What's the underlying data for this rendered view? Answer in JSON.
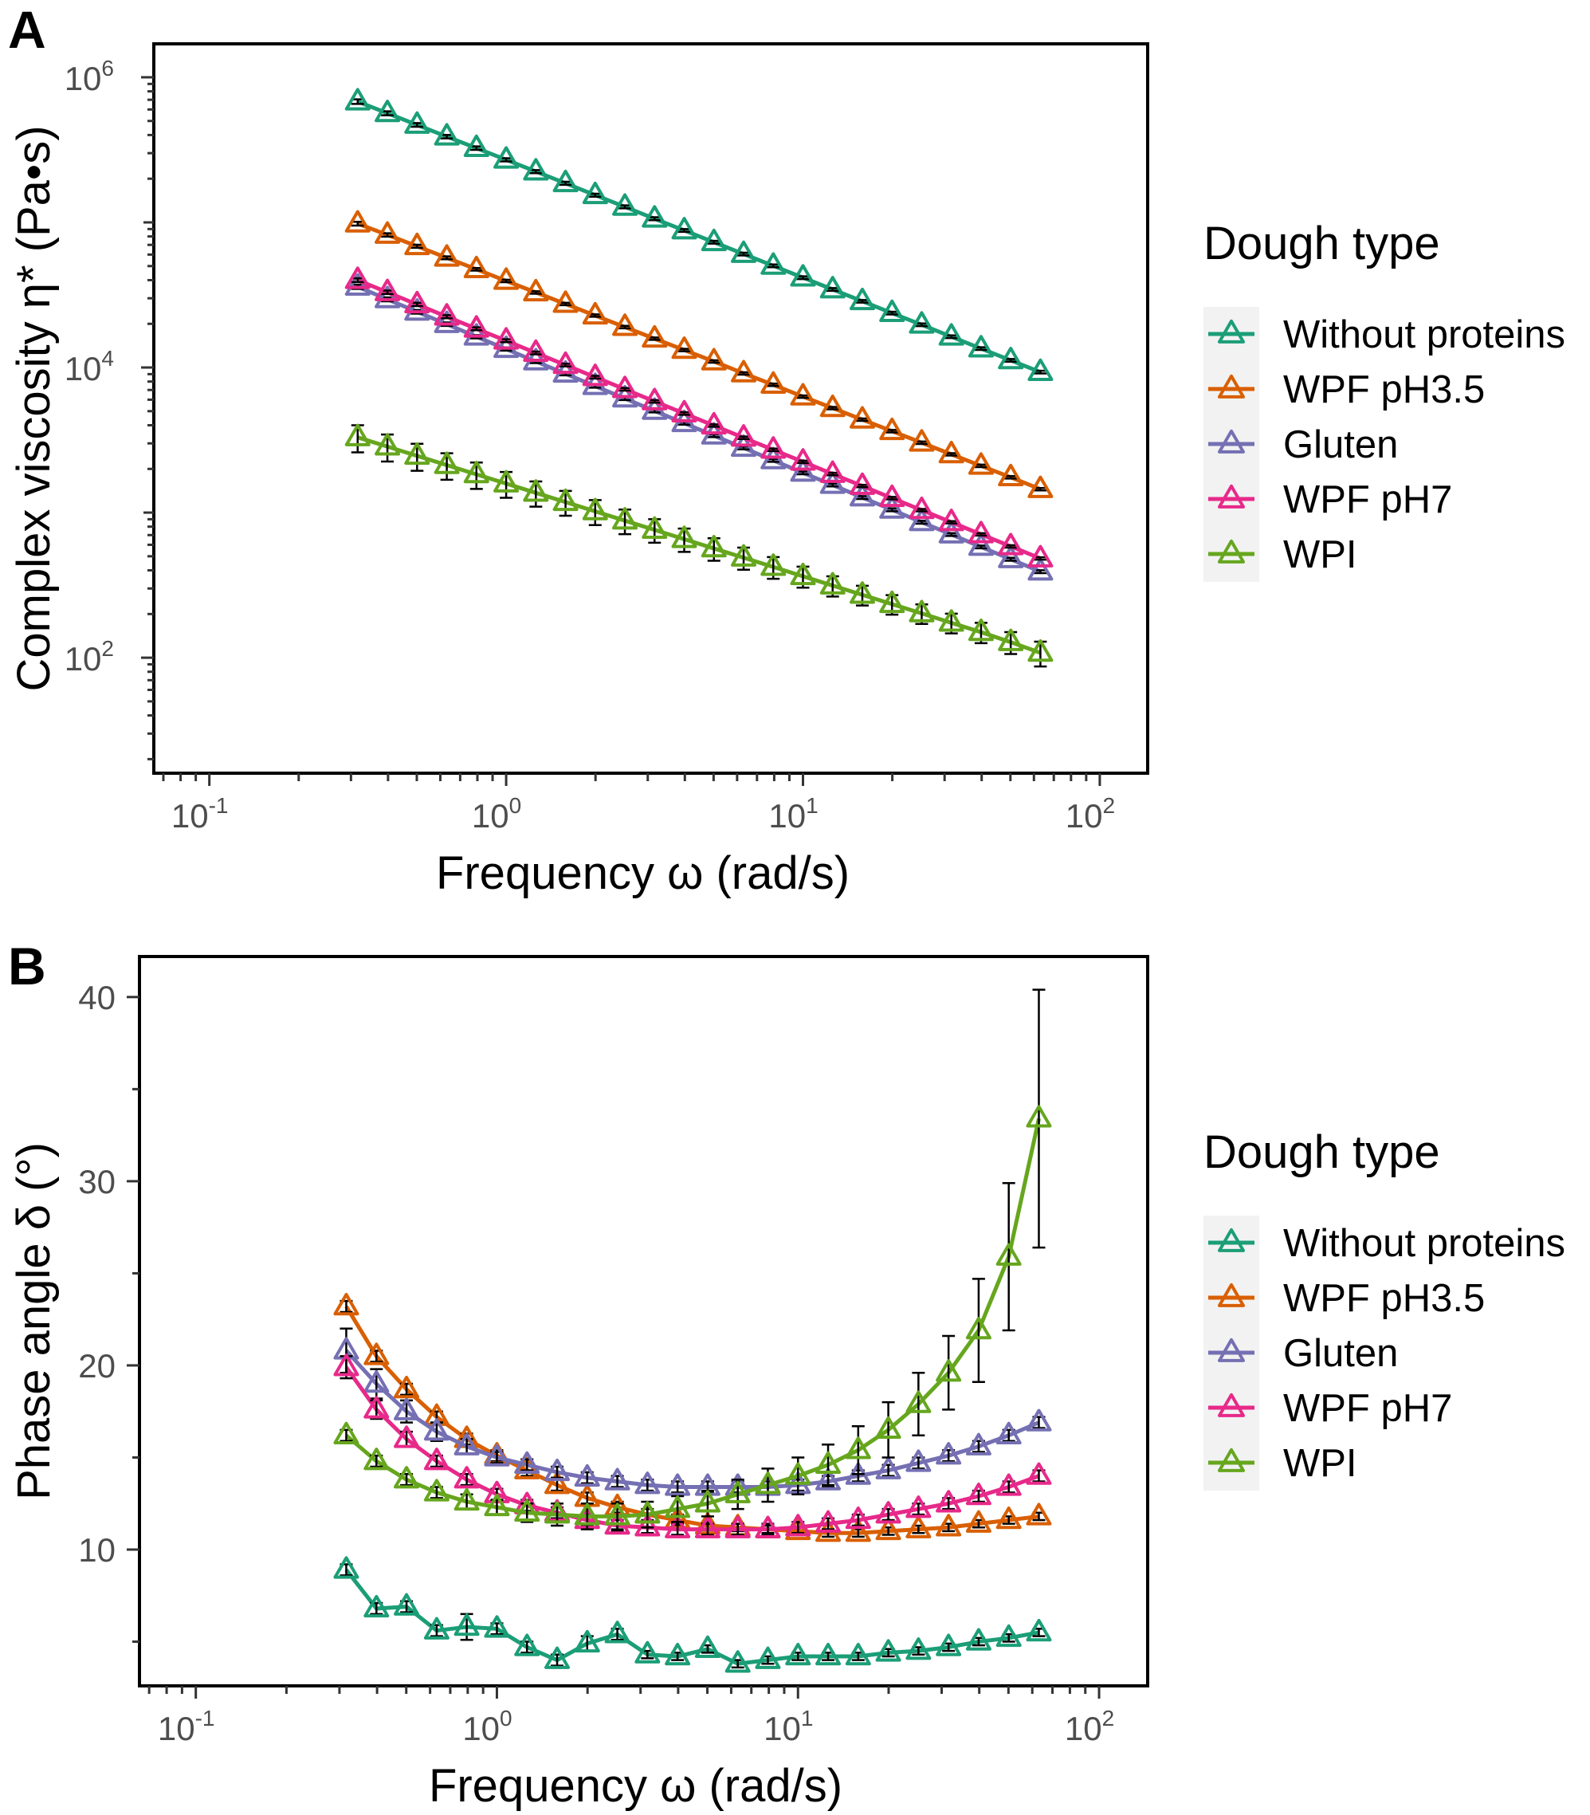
{
  "colors": {
    "without_proteins": "#1b9e77",
    "wpf_ph35": "#d95f02",
    "gluten": "#7570b3",
    "wpf_ph7": "#e7298a",
    "wpi": "#66a61e",
    "legend_background": "#f2f2f2",
    "error_bar": "#000000"
  },
  "chart_data": [
    {
      "panel": "A",
      "type": "line",
      "title": "",
      "xlabel": "Frequency ω (rad/s)",
      "ylabel": "Complex viscosity  η* (Pa•s)",
      "xscale": "log",
      "yscale": "log",
      "xlim": [
        0.065,
        145
      ],
      "ylim": [
        16,
        1700000
      ],
      "x_ticks": [
        {
          "base": "10",
          "exp": "-1",
          "value": 0.1
        },
        {
          "base": "10",
          "exp": "0",
          "value": 1
        },
        {
          "base": "10",
          "exp": "1",
          "value": 10
        },
        {
          "base": "10",
          "exp": "2",
          "value": 100
        }
      ],
      "y_ticks": [
        {
          "base": "10",
          "exp": "2",
          "value": 100
        },
        {
          "base": "10",
          "exp": "4",
          "value": 10000
        },
        {
          "base": "10",
          "exp": "6",
          "value": 1000000
        }
      ],
      "grid": false,
      "legend_title": "Dough type",
      "marker": "triangle-open",
      "x": [
        0.316,
        0.398,
        0.501,
        0.631,
        0.794,
        1.0,
        1.259,
        1.585,
        1.995,
        2.512,
        3.162,
        3.981,
        5.012,
        6.31,
        7.943,
        10.0,
        12.589,
        15.849,
        19.953,
        25.119,
        31.623,
        39.811,
        50.119,
        63.096
      ],
      "series": [
        {
          "name": "Without proteins",
          "color_key": "without_proteins",
          "values": [
            680000,
            565000,
            470000,
            390000,
            325000,
            270000,
            224000,
            186000,
            154000,
            128000,
            106000,
            88000,
            73000,
            60500,
            50200,
            41600,
            34500,
            28600,
            23700,
            19700,
            16300,
            13500,
            11200,
            9300
          ],
          "errors": [
            25000,
            18000,
            14000,
            11000,
            9000,
            7000,
            5500,
            4500,
            3700,
            3000,
            2500,
            2000,
            1600,
            1300,
            1100,
            900,
            750,
            600,
            500,
            420,
            350,
            290,
            240,
            200
          ]
        },
        {
          "name": "WPF pH3.5",
          "color_key": "wpf_ph35",
          "values": [
            98000,
            82000,
            68500,
            57000,
            47500,
            39500,
            32900,
            27400,
            22800,
            19000,
            15800,
            13200,
            11000,
            9100,
            7600,
            6300,
            5250,
            4370,
            3640,
            3030,
            2520,
            2100,
            1750,
            1450
          ],
          "errors": [
            3000,
            2200,
            1700,
            1300,
            1000,
            800,
            650,
            530,
            440,
            370,
            300,
            250,
            210,
            175,
            145,
            120,
            100,
            85,
            70,
            58,
            48,
            40,
            34,
            28
          ]
        },
        {
          "name": "Gluten",
          "color_key": "gluten",
          "values": [
            36000,
            29500,
            24200,
            19900,
            16300,
            13400,
            11000,
            9050,
            7440,
            6110,
            5020,
            4130,
            3390,
            2790,
            2290,
            1880,
            1550,
            1270,
            1045,
            858,
            706,
            580,
            477,
            392
          ],
          "errors": [
            1200,
            900,
            700,
            550,
            430,
            340,
            270,
            220,
            180,
            145,
            118,
            96,
            78,
            64,
            53,
            43,
            36,
            29,
            24,
            20,
            16,
            13,
            11,
            9
          ]
        },
        {
          "name": "WPF pH7",
          "color_key": "wpf_ph7",
          "values": [
            40000,
            33000,
            27200,
            22400,
            18500,
            15300,
            12600,
            10400,
            8580,
            7080,
            5840,
            4820,
            3980,
            3280,
            2710,
            2240,
            1845,
            1525,
            1258,
            1040,
            858,
            708,
            585,
            483
          ],
          "errors": [
            1200,
            900,
            700,
            550,
            430,
            340,
            270,
            220,
            180,
            145,
            118,
            96,
            78,
            64,
            53,
            43,
            36,
            29,
            24,
            20,
            16,
            13,
            11,
            9
          ]
        },
        {
          "name": "WPI",
          "color_key": "wpi",
          "values": [
            3300,
            2850,
            2460,
            2125,
            1835,
            1585,
            1368,
            1181,
            1020,
            880,
            760,
            656,
            566,
            489,
            422,
            364,
            314,
            271,
            234,
            202,
            174,
            150,
            128,
            108
          ],
          "errors": [
            700,
            600,
            520,
            440,
            380,
            320,
            270,
            230,
            200,
            170,
            140,
            120,
            100,
            85,
            72,
            60,
            50,
            42,
            36,
            31,
            27,
            24,
            22,
            21
          ]
        }
      ]
    },
    {
      "panel": "B",
      "type": "line",
      "title": "",
      "xlabel": "Frequency ω (rad/s)",
      "ylabel": "Phase angle  δ (°)",
      "xscale": "log",
      "yscale": "linear",
      "xlim": [
        0.065,
        145
      ],
      "ylim": [
        2.6,
        42.2
      ],
      "x_ticks": [
        {
          "base": "10",
          "exp": "-1",
          "value": 0.1
        },
        {
          "base": "10",
          "exp": "0",
          "value": 1
        },
        {
          "base": "10",
          "exp": "1",
          "value": 10
        },
        {
          "base": "10",
          "exp": "2",
          "value": 100
        }
      ],
      "y_ticks": [
        {
          "label": "10",
          "value": 10
        },
        {
          "label": "20",
          "value": 20
        },
        {
          "label": "30",
          "value": 30
        },
        {
          "label": "40",
          "value": 40
        }
      ],
      "grid": false,
      "legend_title": "Dough type",
      "marker": "triangle-open",
      "x": [
        0.316,
        0.398,
        0.501,
        0.631,
        0.794,
        1.0,
        1.259,
        1.585,
        1.995,
        2.512,
        3.162,
        3.981,
        5.012,
        6.31,
        7.943,
        10.0,
        12.589,
        15.849,
        19.953,
        25.119,
        31.623,
        39.811,
        50.119,
        63.096
      ],
      "series": [
        {
          "name": "Without proteins",
          "color_key": "without_proteins",
          "values": [
            8.9,
            6.8,
            6.9,
            5.6,
            5.8,
            5.7,
            4.7,
            4.0,
            4.9,
            5.4,
            4.3,
            4.2,
            4.6,
            3.8,
            4.0,
            4.2,
            4.2,
            4.2,
            4.4,
            4.5,
            4.7,
            5.0,
            5.2,
            5.5
          ],
          "errors": [
            0.3,
            0.3,
            0.3,
            0.3,
            0.7,
            0.3,
            0.3,
            0.3,
            0.4,
            0.3,
            0.2,
            0.2,
            0.2,
            0.2,
            0.2,
            0.2,
            0.2,
            0.2,
            0.2,
            0.2,
            0.2,
            0.2,
            0.2,
            0.2
          ]
        },
        {
          "name": "WPF pH3.5",
          "color_key": "wpf_ph35",
          "values": [
            23.2,
            20.5,
            18.7,
            17.2,
            16.0,
            15.1,
            14.3,
            13.5,
            12.8,
            12.3,
            11.9,
            11.6,
            11.3,
            11.2,
            11.1,
            11.0,
            10.9,
            10.9,
            11.0,
            11.1,
            11.2,
            11.4,
            11.6,
            11.8
          ],
          "errors": [
            0.3,
            0.3,
            0.3,
            0.3,
            0.3,
            0.3,
            0.3,
            0.3,
            0.3,
            0.3,
            0.3,
            0.3,
            0.2,
            0.2,
            0.2,
            0.2,
            0.2,
            0.2,
            0.2,
            0.2,
            0.2,
            0.2,
            0.2,
            0.2
          ]
        },
        {
          "name": "Gluten",
          "color_key": "gluten",
          "values": [
            20.8,
            19.0,
            17.5,
            16.4,
            15.6,
            15.0,
            14.6,
            14.2,
            13.9,
            13.7,
            13.5,
            13.4,
            13.4,
            13.4,
            13.4,
            13.5,
            13.7,
            14.0,
            14.3,
            14.7,
            15.1,
            15.6,
            16.2,
            16.9
          ],
          "errors": [
            1.2,
            0.8,
            0.6,
            0.5,
            0.4,
            0.3,
            0.3,
            0.3,
            0.3,
            0.3,
            0.3,
            0.3,
            0.3,
            0.3,
            0.3,
            0.3,
            0.3,
            0.3,
            0.3,
            0.3,
            0.3,
            0.3,
            0.3,
            0.3
          ]
        },
        {
          "name": "WPF pH7",
          "color_key": "wpf_ph7",
          "values": [
            19.9,
            17.6,
            16.0,
            14.8,
            13.8,
            13.0,
            12.4,
            12.0,
            11.6,
            11.3,
            11.2,
            11.1,
            11.1,
            11.1,
            11.1,
            11.2,
            11.4,
            11.6,
            11.9,
            12.2,
            12.5,
            12.9,
            13.4,
            14.0
          ],
          "errors": [
            0.6,
            0.5,
            0.4,
            0.3,
            0.3,
            0.3,
            0.3,
            0.3,
            0.3,
            0.3,
            0.3,
            0.3,
            0.3,
            0.3,
            0.3,
            0.3,
            0.3,
            0.3,
            0.3,
            0.3,
            0.3,
            0.3,
            0.3,
            0.3
          ]
        },
        {
          "name": "WPI",
          "color_key": "wpi",
          "values": [
            16.2,
            14.8,
            13.8,
            13.1,
            12.6,
            12.3,
            12.0,
            11.9,
            11.8,
            11.8,
            11.9,
            12.2,
            12.5,
            13.0,
            13.5,
            14.0,
            14.6,
            15.4,
            16.5,
            17.9,
            19.6,
            21.9,
            25.9,
            33.4
          ],
          "errors": [
            0.3,
            0.3,
            0.3,
            0.3,
            0.4,
            0.4,
            0.5,
            0.6,
            0.7,
            0.7,
            0.7,
            0.7,
            0.7,
            0.8,
            0.9,
            1.0,
            1.1,
            1.3,
            1.5,
            1.7,
            2.0,
            2.8,
            4.0,
            7.0
          ]
        }
      ]
    }
  ]
}
